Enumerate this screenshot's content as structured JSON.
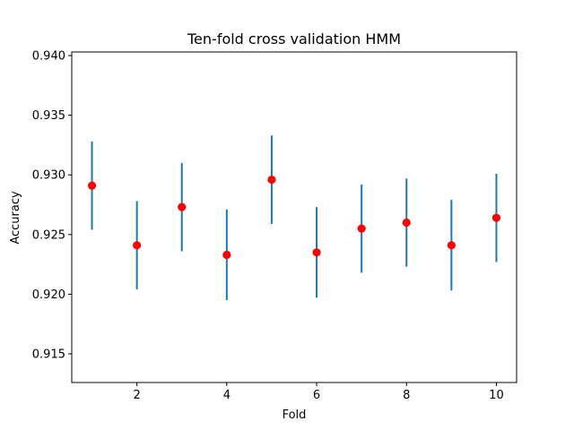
{
  "chart_data": {
    "type": "scatter",
    "title": "Ten-fold cross validation HMM",
    "xlabel": "Fold",
    "ylabel": "Accuracy",
    "x": [
      1,
      2,
      3,
      4,
      5,
      6,
      7,
      8,
      9,
      10
    ],
    "y": [
      0.9291,
      0.9241,
      0.9273,
      0.9233,
      0.9296,
      0.9235,
      0.9255,
      0.926,
      0.9241,
      0.9264
    ],
    "yerr": [
      0.0037,
      0.0037,
      0.0037,
      0.0038,
      0.0037,
      0.0038,
      0.0037,
      0.0037,
      0.0038,
      0.0037
    ],
    "xlim": [
      0.55,
      10.45
    ],
    "ylim": [
      0.9126,
      0.9403
    ],
    "xticks": [
      2,
      4,
      6,
      8,
      10
    ],
    "xtick_labels": [
      "2",
      "4",
      "6",
      "8",
      "10"
    ],
    "yticks": [
      0.915,
      0.92,
      0.925,
      0.93,
      0.935,
      0.94
    ],
    "ytick_labels": [
      "0.915",
      "0.920",
      "0.925",
      "0.930",
      "0.935",
      "0.940"
    ],
    "grid": false,
    "marker_color": "#ff0000",
    "errorbar_color": "#1f77b4"
  }
}
